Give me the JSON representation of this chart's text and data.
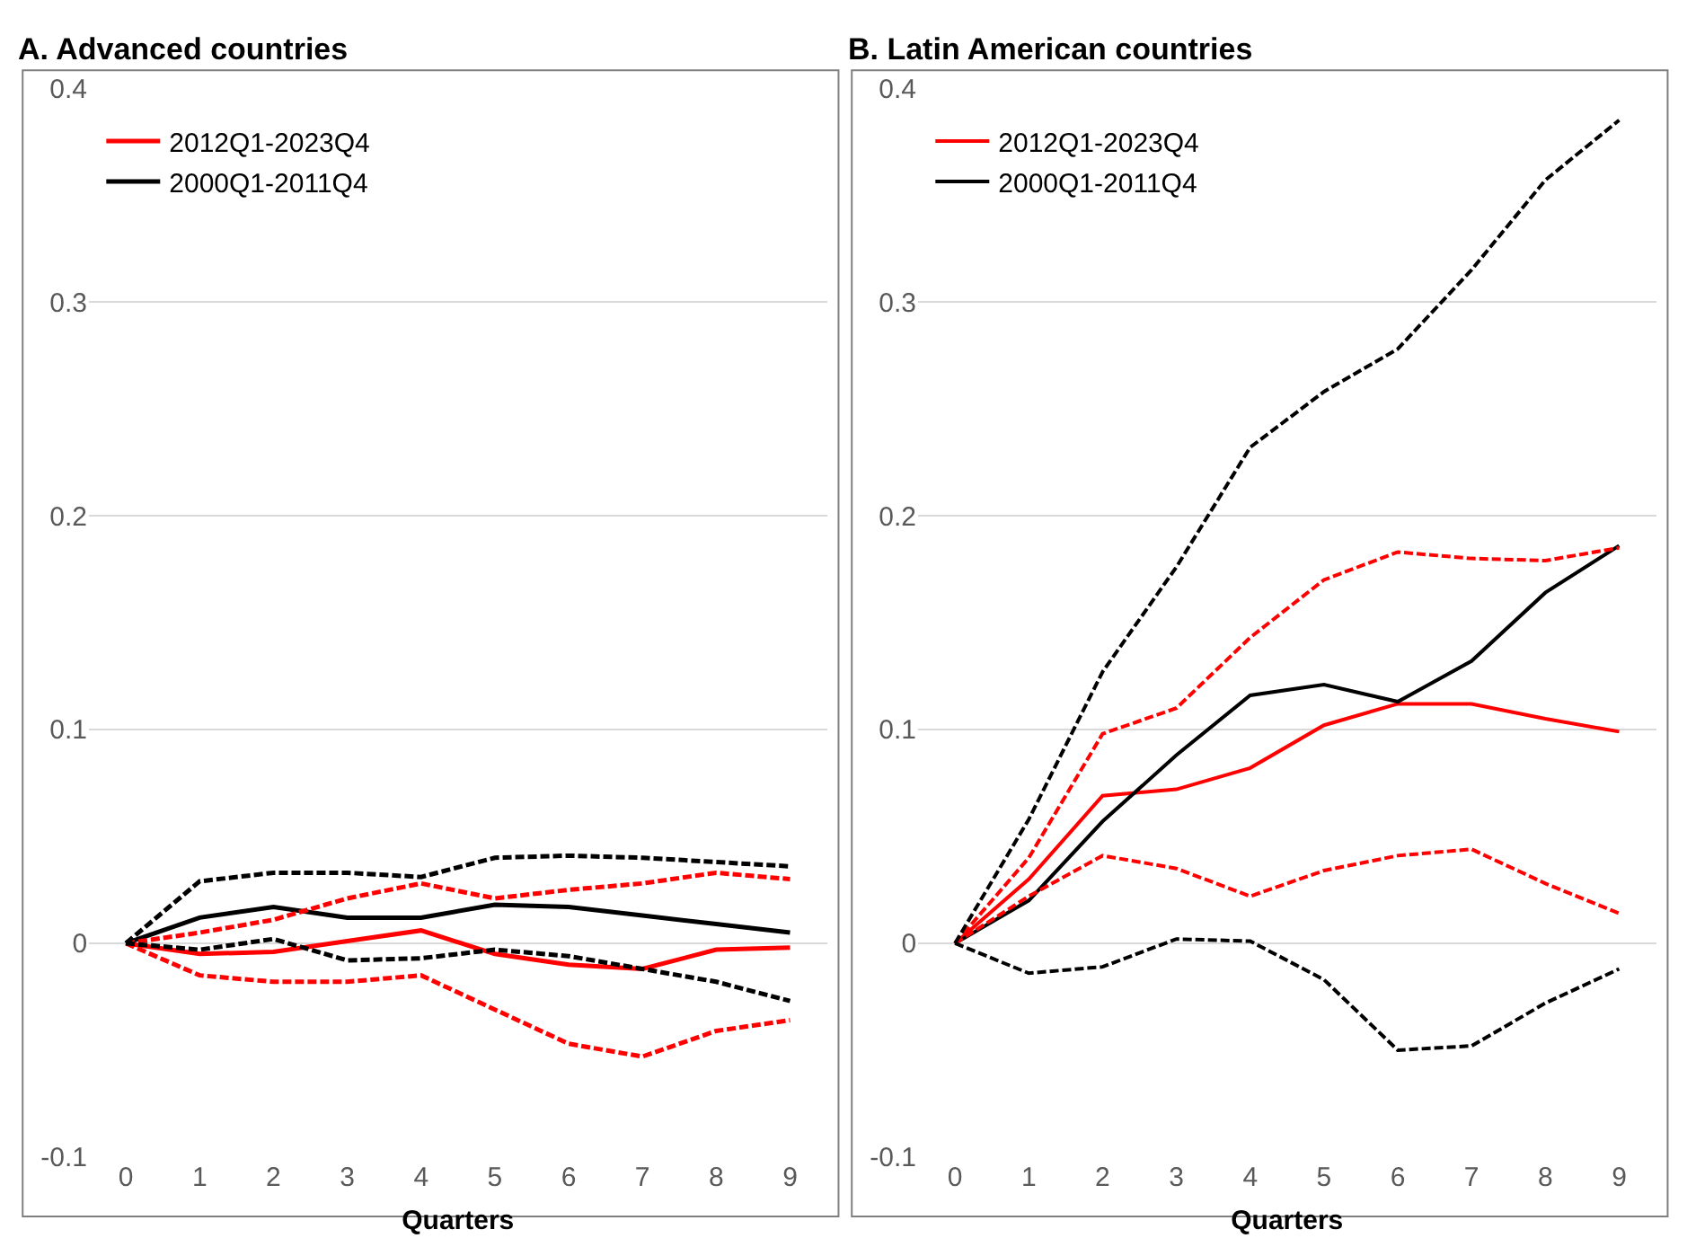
{
  "chart_data": [
    {
      "type": "line",
      "title": "A. Advanced countries",
      "xlabel": "Quarters",
      "categories": [
        "0",
        "1",
        "2",
        "3",
        "4",
        "5",
        "6",
        "7",
        "8",
        "9"
      ],
      "ylim": [
        -0.1,
        0.4
      ],
      "yticks": [
        -0.1,
        0,
        0.1,
        0.2,
        0.3,
        0.4
      ],
      "grid": "y",
      "legend": "top left",
      "marker": "none",
      "series": [
        {
          "name": "2012Q1-2023Q4",
          "color": "#ff0000",
          "line_style": "solid",
          "values": [
            0,
            -0.005,
            -0.004,
            0.001,
            0.006,
            -0.005,
            -0.01,
            -0.012,
            -0.003,
            -0.002
          ]
        },
        {
          "name": "2000Q1-2011Q4",
          "color": "#000000",
          "line_style": "solid",
          "values": [
            0,
            0.012,
            0.017,
            0.012,
            0.012,
            0.018,
            0.017,
            0.013,
            0.009,
            0.005
          ]
        },
        {
          "color": "#ff0000",
          "line_style": "dashed",
          "values": [
            0,
            0.005,
            0.011,
            0.021,
            0.028,
            0.021,
            0.025,
            0.028,
            0.033,
            0.03
          ]
        },
        {
          "color": "#ff0000",
          "line_style": "dashed",
          "values": [
            0,
            -0.015,
            -0.018,
            -0.018,
            -0.015,
            -0.031,
            -0.047,
            -0.053,
            -0.041,
            -0.036
          ]
        },
        {
          "color": "#000000",
          "line_style": "dashed",
          "values": [
            0,
            0.029,
            0.033,
            0.033,
            0.031,
            0.04,
            0.041,
            0.04,
            0.038,
            0.036
          ]
        },
        {
          "color": "#000000",
          "line_style": "dashed",
          "values": [
            0,
            -0.003,
            0.002,
            -0.008,
            -0.007,
            -0.003,
            -0.006,
            -0.012,
            -0.018,
            -0.027
          ]
        }
      ]
    },
    {
      "type": "line",
      "title": "B. Latin American countries",
      "xlabel": "Quarters",
      "categories": [
        "0",
        "1",
        "2",
        "3",
        "4",
        "5",
        "6",
        "7",
        "8",
        "9"
      ],
      "ylim": [
        -0.1,
        0.4
      ],
      "yticks": [
        -0.1,
        0,
        0.1,
        0.2,
        0.3,
        0.4
      ],
      "grid": "y",
      "legend": "top left",
      "marker": "none",
      "series": [
        {
          "name": "2012Q1-2023Q4",
          "color": "#ff0000",
          "line_style": "solid",
          "values": [
            0,
            0.03,
            0.069,
            0.072,
            0.082,
            0.102,
            0.112,
            0.112,
            0.105,
            0.099
          ]
        },
        {
          "name": "2000Q1-2011Q4",
          "color": "#000000",
          "line_style": "solid",
          "values": [
            0,
            0.02,
            0.057,
            0.088,
            0.116,
            0.121,
            0.113,
            0.132,
            0.164,
            0.186
          ]
        },
        {
          "color": "#ff0000",
          "line_style": "dashed",
          "values": [
            0,
            0.04,
            0.098,
            0.11,
            0.143,
            0.17,
            0.183,
            0.18,
            0.179,
            0.185
          ]
        },
        {
          "color": "#ff0000",
          "line_style": "dashed",
          "values": [
            0,
            0.022,
            0.041,
            0.035,
            0.022,
            0.034,
            0.041,
            0.044,
            0.028,
            0.014
          ]
        },
        {
          "color": "#000000",
          "line_style": "dashed",
          "values": [
            0,
            0.058,
            0.127,
            0.176,
            0.232,
            0.258,
            0.278,
            0.315,
            0.357,
            0.385
          ]
        },
        {
          "color": "#000000",
          "line_style": "dashed",
          "values": [
            0,
            -0.014,
            -0.011,
            0.002,
            0.001,
            -0.017,
            -0.05,
            -0.048,
            -0.028,
            -0.012
          ]
        }
      ]
    }
  ]
}
